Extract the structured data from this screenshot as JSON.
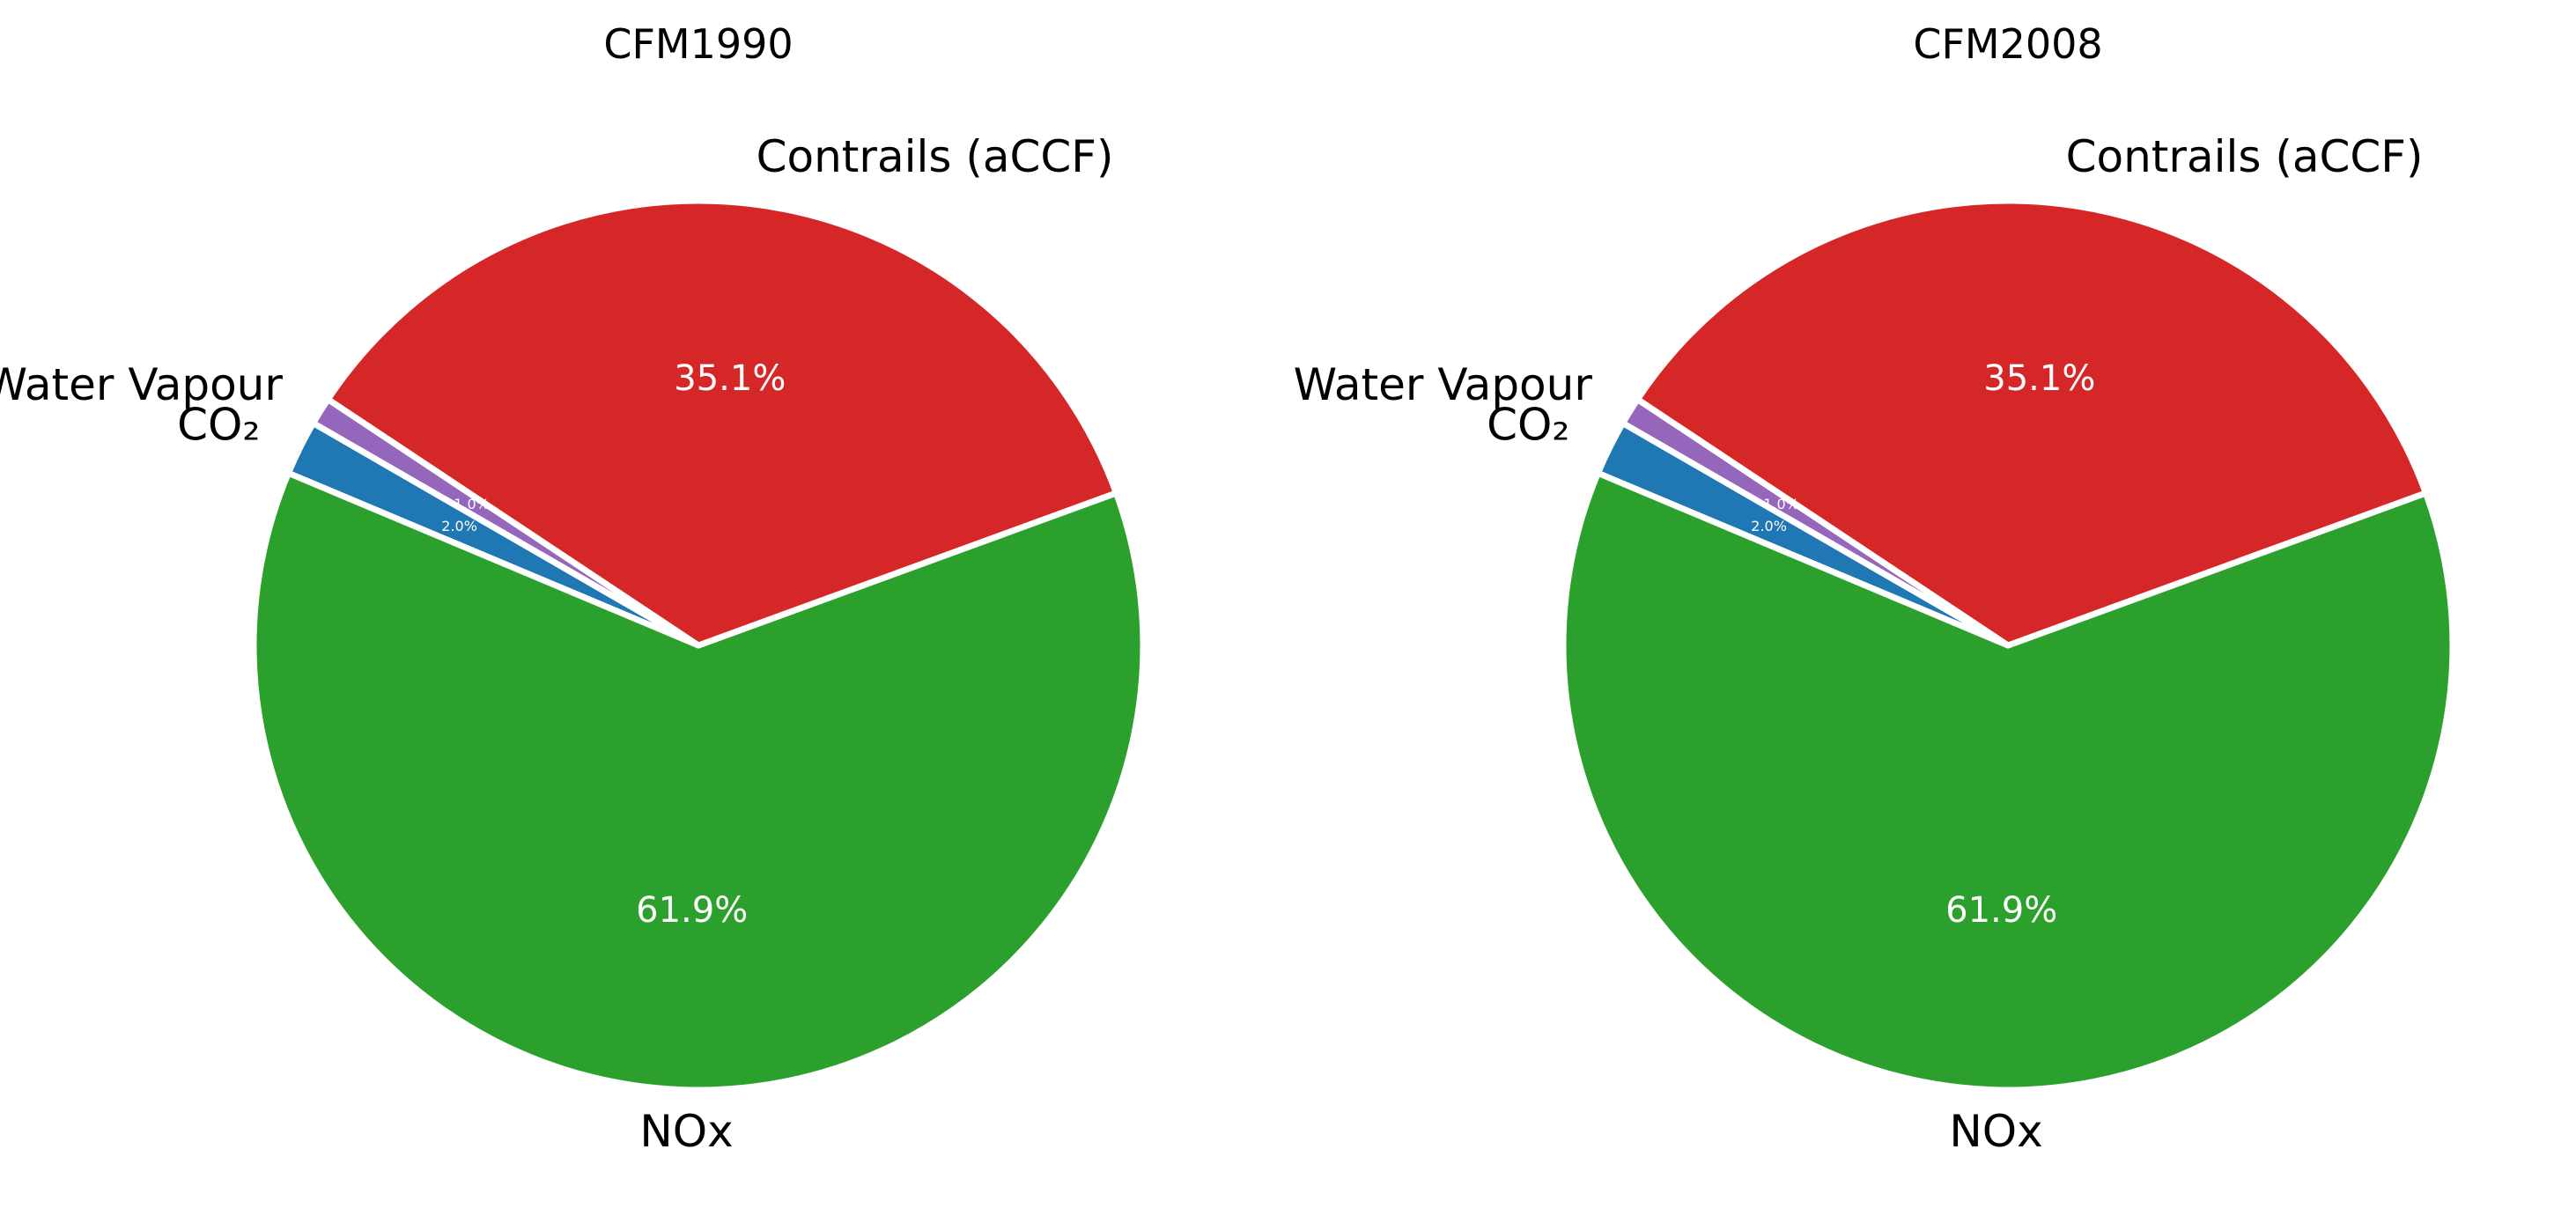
{
  "chart_data": [
    {
      "type": "pie",
      "title": "CFM1990",
      "categories": [
        "CO₂",
        "NOx",
        "Contrails (aCCF)",
        "Water Vapour"
      ],
      "values": [
        2.0,
        61.9,
        35.1,
        1.0
      ],
      "value_labels": [
        "2.0%",
        "61.9%",
        "35.1%",
        "1.0%"
      ],
      "colors": [
        "#1f77b4",
        "#2ca02c",
        "#d62728",
        "#9467bd"
      ],
      "start_angle_deg": 150,
      "direction": "counterclockwise",
      "legend": "none"
    },
    {
      "type": "pie",
      "title": "CFM2008",
      "categories": [
        "CO₂",
        "NOx",
        "Contrails (aCCF)",
        "Water Vapour"
      ],
      "values": [
        2.0,
        61.9,
        35.1,
        1.0
      ],
      "value_labels": [
        "2.0%",
        "61.9%",
        "35.1%",
        "1.0%"
      ],
      "colors": [
        "#1f77b4",
        "#2ca02c",
        "#d62728",
        "#9467bd"
      ],
      "start_angle_deg": 150,
      "direction": "counterclockwise",
      "legend": "none"
    }
  ]
}
